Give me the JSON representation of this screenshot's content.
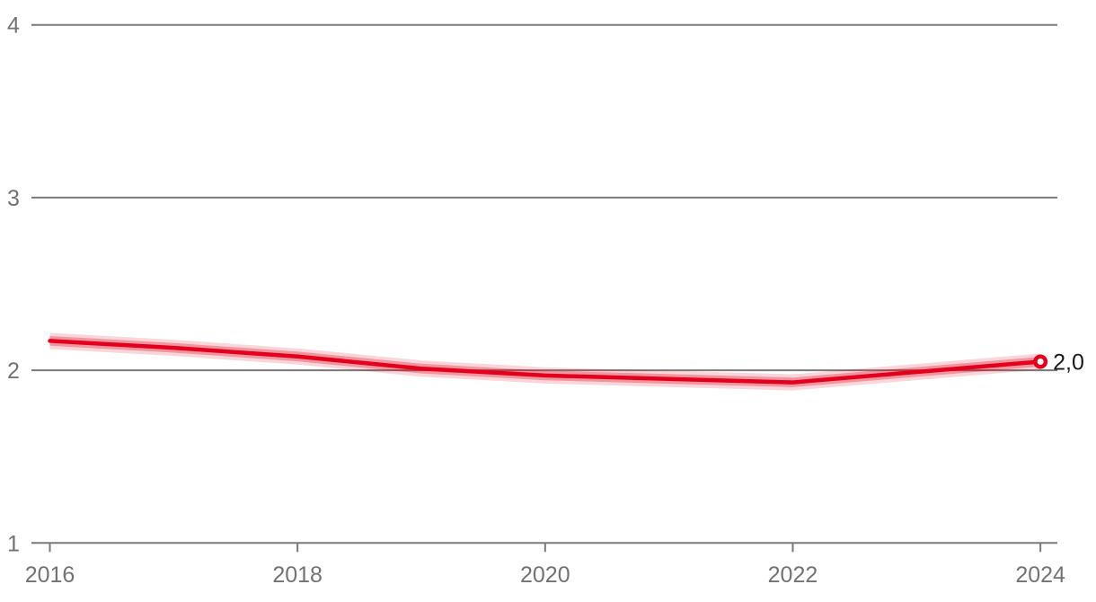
{
  "chart_data": {
    "type": "line",
    "title": "",
    "xlabel": "",
    "ylabel": "",
    "x": [
      2016,
      2017,
      2018,
      2019,
      2020,
      2021,
      2022,
      2023,
      2024
    ],
    "series": [
      {
        "name": "main-series",
        "values": [
          2.17,
          2.13,
          2.08,
          2.01,
          1.97,
          1.95,
          1.93,
          1.99,
          2.05
        ],
        "end_label": "2,0",
        "band_halfwidth_outer": 0.047,
        "band_halfwidth_inner": 0.028
      }
    ],
    "xlim": [
      2016,
      2024
    ],
    "ylim": [
      1,
      4
    ],
    "y_ticks": [
      1,
      2,
      3,
      4
    ],
    "y_tick_labels": [
      "1",
      "2",
      "3",
      "4"
    ],
    "x_ticks": [
      2016,
      2018,
      2020,
      2022,
      2024
    ],
    "x_tick_labels": [
      "2016",
      "2018",
      "2020",
      "2022",
      "2024"
    ],
    "grid": "horizontal-only",
    "legend": "none",
    "colors": {
      "line": "#e2001a",
      "band": "#e2001a",
      "grid": "#7a7a7a",
      "axis": "#7a7a7a",
      "tick_label": "#737373",
      "end_label_text": "#1a1a1a",
      "marker_fill": "#ffffff",
      "background": "#ffffff"
    }
  }
}
